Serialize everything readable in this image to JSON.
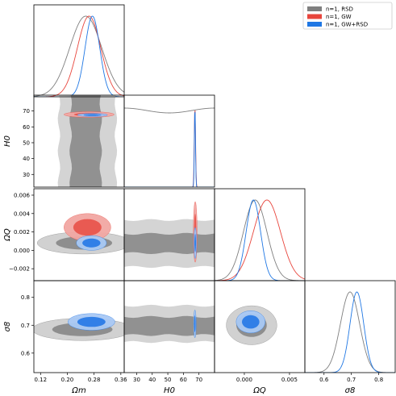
{
  "chart_data": {
    "type": "triangle-corner",
    "parameters": [
      {
        "key": "om",
        "label": "Ωm",
        "range": [
          0.1,
          0.37
        ],
        "ticks": [
          0.12,
          0.2,
          0.28,
          0.36
        ],
        "tick_labels": [
          "0.12",
          "0.20",
          "0.28",
          "0.36"
        ]
      },
      {
        "key": "h0",
        "label": "H0",
        "range": [
          22,
          80
        ],
        "ticks": [
          30,
          40,
          50,
          60,
          70
        ],
        "tick_labels": [
          "30",
          "40",
          "50",
          "60",
          "70"
        ]
      },
      {
        "key": "oq",
        "label": "ΩQ",
        "range": [
          -0.0033,
          0.0067
        ],
        "ticks": [
          -0.002,
          0.0,
          0.002,
          0.004,
          0.006
        ],
        "tick_labels": [
          "−0.002",
          "0.000",
          "0.002",
          "0.004",
          "0.006"
        ],
        "x_tick_labels": [
          "0.000",
          "0.005"
        ],
        "x_ticks": [
          0.0,
          0.005
        ]
      },
      {
        "key": "s8",
        "label": "σ8",
        "range": [
          0.53,
          0.86
        ],
        "ticks": [
          0.6,
          0.7,
          0.8
        ],
        "tick_labels": [
          "0.6",
          "0.7",
          "0.8"
        ]
      }
    ],
    "legend": {
      "placement": "top-right",
      "entries": [
        {
          "label": "n=1, RSD",
          "color": "#7f7f7f"
        },
        {
          "label": "n=1, GW",
          "color": "#e8453c"
        },
        {
          "label": "n=1, GW+RSD",
          "color": "#1f77e4"
        }
      ]
    },
    "colors": {
      "RSD": "#7f7f7f",
      "GW": "#e8453c",
      "GWRSD": "#1f77e4",
      "RSD_fill": "#8a8a8a",
      "RSD_fill_outer": "#cfcfcf",
      "GW_fill": "#e8554d",
      "GW_fill_outer": "#f2a7a3",
      "GWRSD_fill": "#2a7be6",
      "GWRSD_fill_outer": "#a9c9f5"
    },
    "series": [
      {
        "name": "n=1, RSD",
        "marginals": {
          "om": {
            "mean": 0.255,
            "sd": 0.048
          },
          "h0": {
            "flat": 0.95
          },
          "oq": {
            "mean": 0.0012,
            "sd": 0.0013
          },
          "s8": {
            "mean": 0.695,
            "sd": 0.035
          }
        }
      },
      {
        "name": "n=1, GW",
        "marginals": {
          "om": {
            "mean": 0.265,
            "sd": 0.035
          },
          "h0": {
            "mean": 67.4,
            "sd": 0.4
          },
          "oq": {
            "mean": 0.0025,
            "sd": 0.0015
          }
        }
      },
      {
        "name": "n=1, GW+RSD",
        "marginals": {
          "om": {
            "mean": 0.275,
            "sd": 0.022
          },
          "h0": {
            "mean": 67.4,
            "sd": 0.35
          },
          "oq": {
            "mean": 0.001,
            "sd": 0.0008
          },
          "s8": {
            "mean": 0.72,
            "sd": 0.025
          }
        }
      }
    ],
    "contours": [
      {
        "panel": "h0_vs_om",
        "series": "n=1, RSD",
        "kind": "band",
        "x_outer": [
          0.175,
          0.345
        ],
        "x_inner": [
          0.21,
          0.3
        ]
      },
      {
        "panel": "h0_vs_om",
        "series": "n=1, GW",
        "kind": "ellipse",
        "center": [
          0.265,
          67.8
        ],
        "half_axes": [
          0.075,
          1.8
        ],
        "angle_deg": -4
      },
      {
        "panel": "h0_vs_om",
        "series": "n=1, GW+RSD",
        "kind": "ellipse",
        "center": [
          0.275,
          67.5
        ],
        "half_axes": [
          0.045,
          1.0
        ],
        "angle_deg": -4
      },
      {
        "panel": "oq_vs_om",
        "series": "n=1, RSD",
        "kind": "ellipse",
        "center": [
          0.25,
          0.0008
        ],
        "half_axes": [
          0.14,
          0.0012
        ],
        "angle_deg": 28
      },
      {
        "panel": "oq_vs_om",
        "series": "n=1, GW",
        "kind": "ellipse",
        "center": [
          0.26,
          0.0025
        ],
        "half_axes": [
          0.07,
          0.0015
        ],
        "angle_deg": 42
      },
      {
        "panel": "oq_vs_om",
        "series": "n=1, GW+RSD",
        "kind": "ellipse",
        "center": [
          0.272,
          0.0008
        ],
        "half_axes": [
          0.045,
          0.0008
        ],
        "angle_deg": 35
      },
      {
        "panel": "oq_vs_h0",
        "series": "n=1, RSD",
        "kind": "band",
        "y_outer": [
          -0.0018,
          0.0033
        ],
        "y_inner": [
          -0.0003,
          0.0018
        ]
      },
      {
        "panel": "oq_vs_h0",
        "series": "n=1, GW",
        "kind": "ellipse",
        "center": [
          67.6,
          0.002
        ],
        "half_axes": [
          1.2,
          0.0033
        ],
        "angle_deg": 0
      },
      {
        "panel": "oq_vs_h0",
        "series": "n=1, GW+RSD",
        "kind": "ellipse",
        "center": [
          67.6,
          0.0008
        ],
        "half_axes": [
          0.8,
          0.0017
        ],
        "angle_deg": 0
      },
      {
        "panel": "s8_vs_om",
        "series": "n=1, RSD",
        "kind": "ellipse",
        "center": [
          0.245,
          0.685
        ],
        "half_axes": [
          0.15,
          0.04
        ],
        "angle_deg": 38
      },
      {
        "panel": "s8_vs_om",
        "series": "n=1, GW+RSD",
        "kind": "ellipse",
        "center": [
          0.272,
          0.712
        ],
        "half_axes": [
          0.07,
          0.03
        ],
        "angle_deg": 38
      },
      {
        "panel": "s8_vs_h0",
        "series": "n=1, RSD",
        "kind": "band",
        "y_outer": [
          0.64,
          0.77
        ],
        "y_inner": [
          0.665,
          0.73
        ]
      },
      {
        "panel": "s8_vs_h0",
        "series": "n=1, GW+RSD",
        "kind": "ellipse",
        "center": [
          67.4,
          0.705
        ],
        "half_axes": [
          0.8,
          0.05
        ],
        "angle_deg": 0
      },
      {
        "panel": "s8_vs_oq",
        "series": "n=1, RSD",
        "kind": "ellipse",
        "center": [
          0.0008,
          0.7
        ],
        "half_axes": [
          0.0028,
          0.07
        ],
        "angle_deg": -35
      },
      {
        "panel": "s8_vs_oq",
        "series": "n=1, GW+RSD",
        "kind": "ellipse",
        "center": [
          0.0007,
          0.712
        ],
        "half_axes": [
          0.0016,
          0.04
        ],
        "angle_deg": -35
      }
    ]
  }
}
